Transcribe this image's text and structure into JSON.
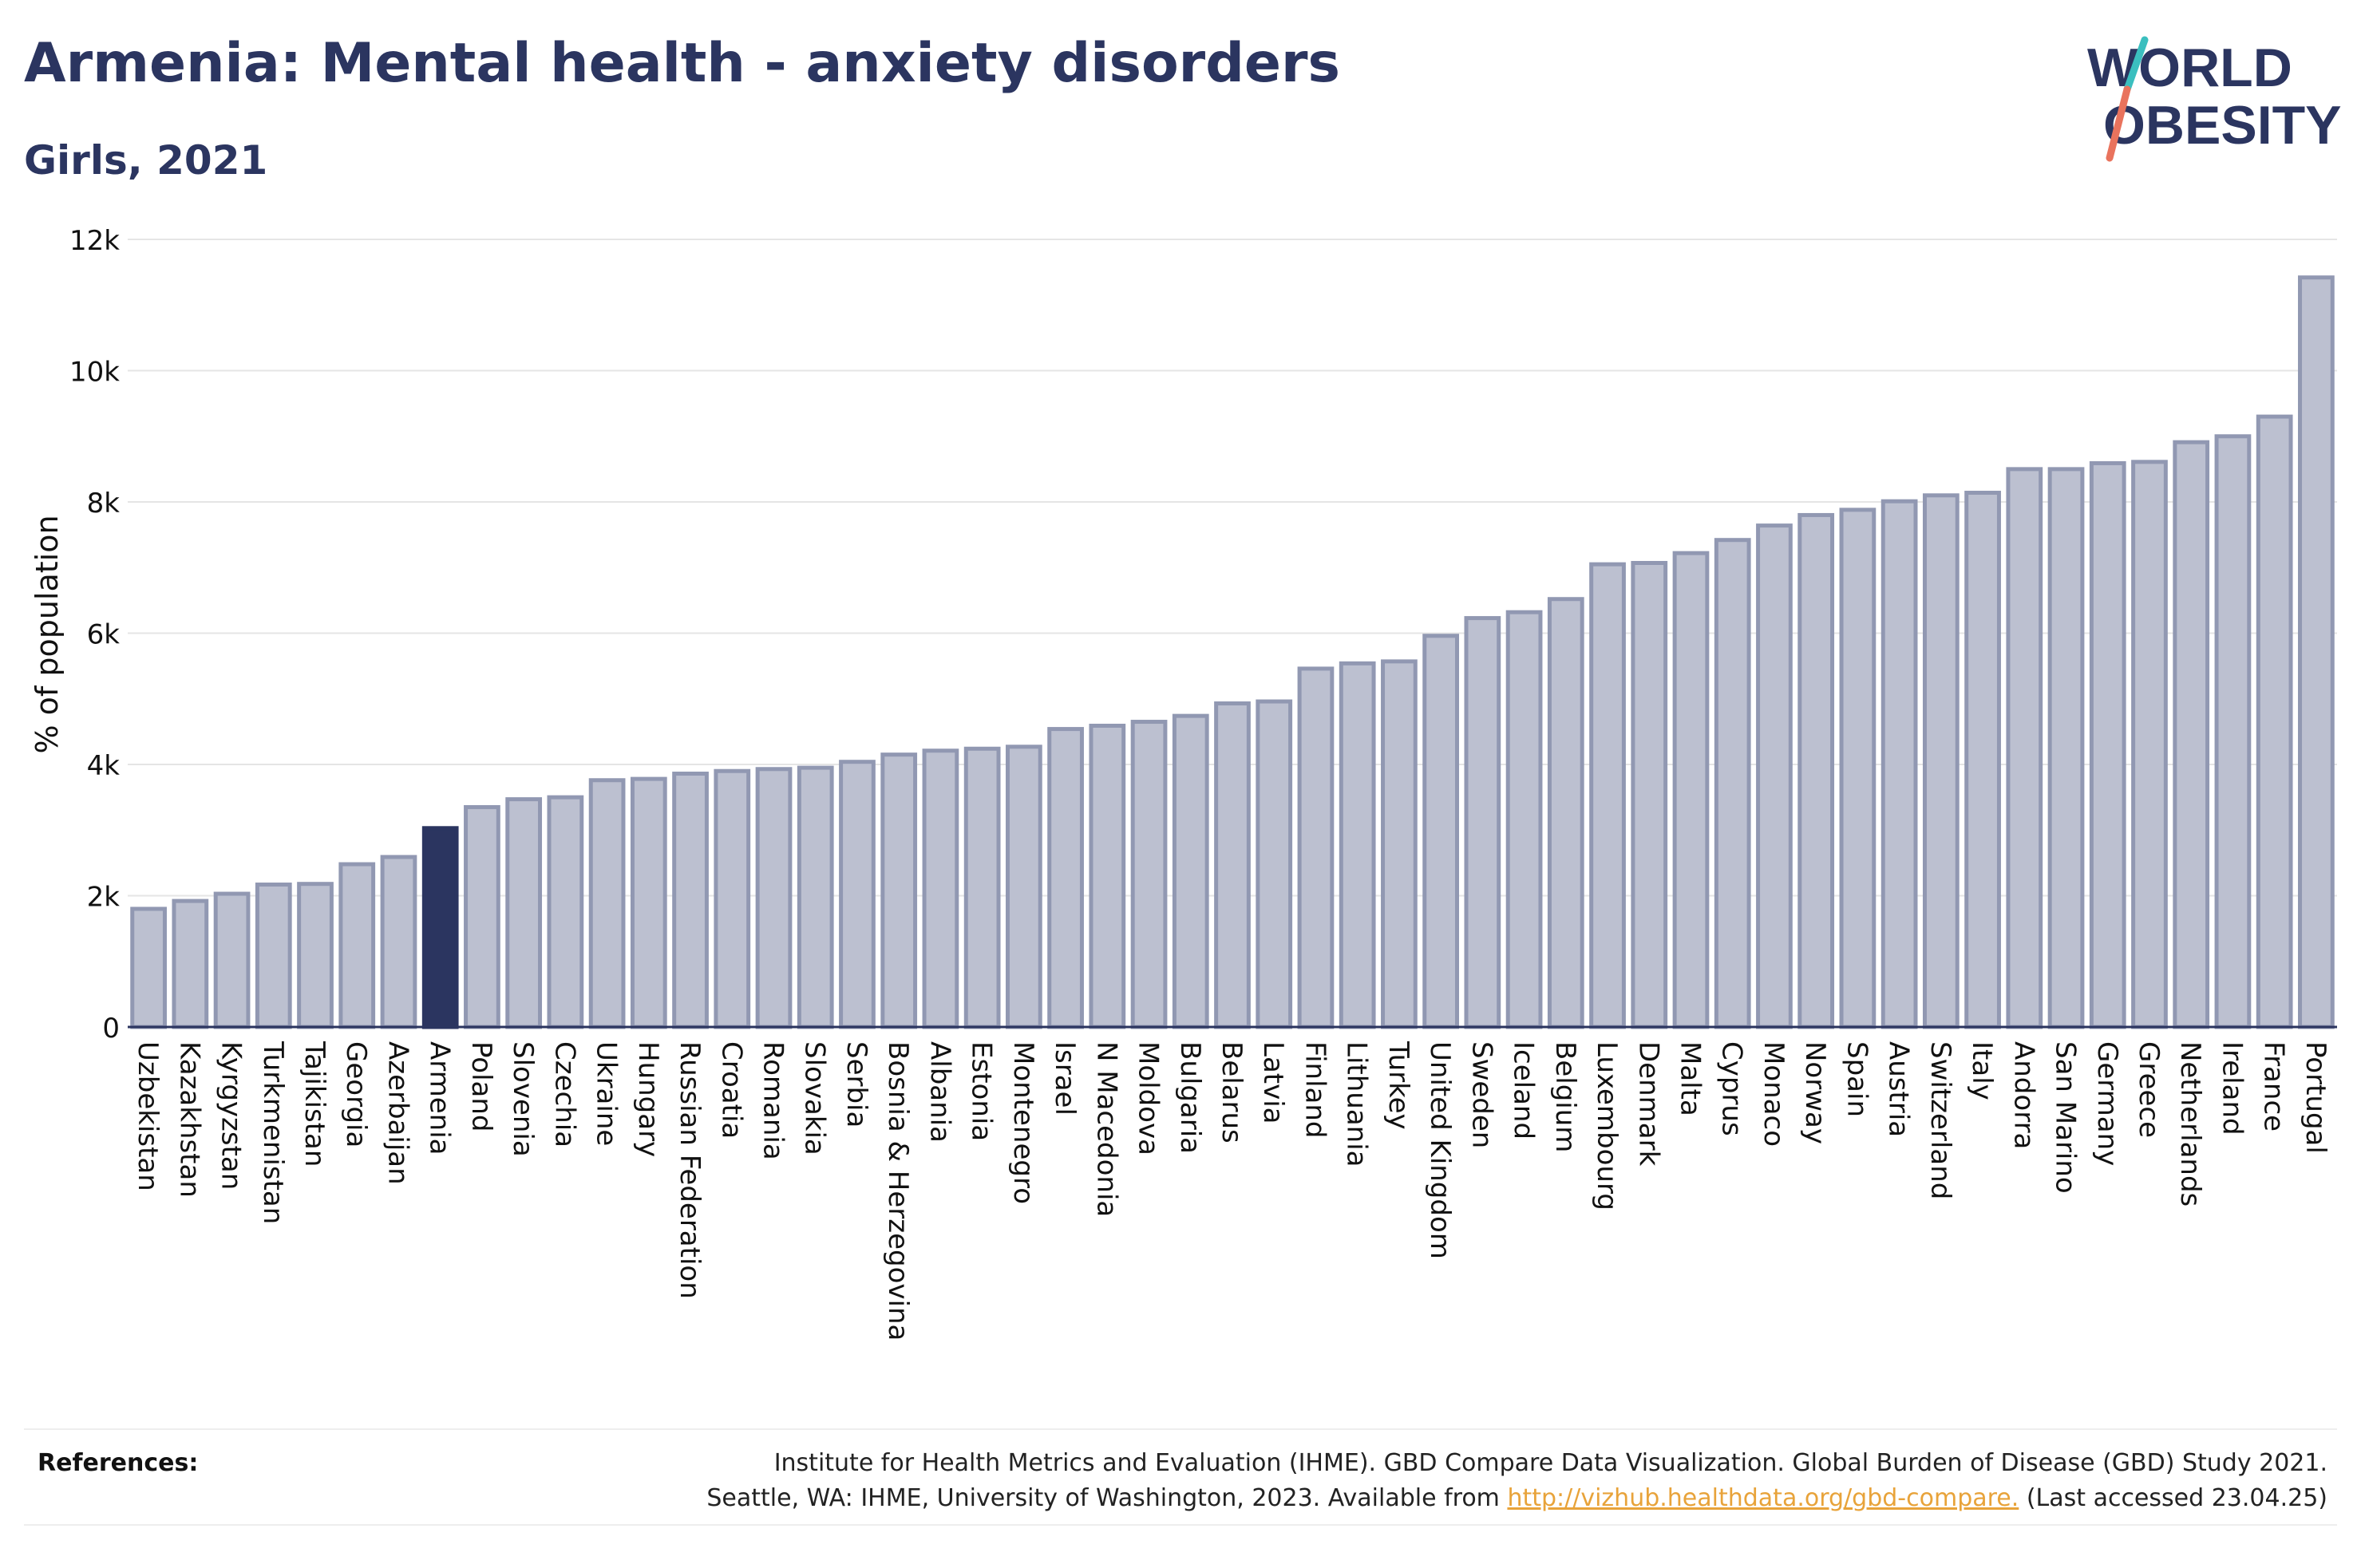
{
  "title": "Armenia: Mental health - anxiety disorders",
  "subtitle": "Girls, 2021",
  "logo": {
    "line1": "WORLD",
    "line2": "OBESITY"
  },
  "colors": {
    "title": "#2b3560",
    "bar_default": "#bcc0d0",
    "bar_default_stroke": "#9198b2",
    "bar_highlight": "#2b3560",
    "grid": "#e5e5e5",
    "link": "#e8a33a",
    "logo_teal": "#3bbfbf",
    "logo_coral": "#e9735d"
  },
  "references": {
    "label": "References:",
    "line1": "Institute for Health Metrics and Evaluation (IHME). GBD Compare Data Visualization. Global Burden of Disease (GBD) Study 2021.",
    "line2_before": "Seattle, WA: IHME, University of Washington, 2023. Available from ",
    "line2_link": "http://vizhub.healthdata.org/gbd-compare.",
    "line2_after": " (Last accessed 23.04.25)"
  },
  "chart_data": {
    "type": "bar",
    "ylabel": "% of population",
    "xlabel": "",
    "ylim": [
      0,
      12000
    ],
    "yticks": [
      {
        "value": 0,
        "label": "0"
      },
      {
        "value": 2000,
        "label": "2k"
      },
      {
        "value": 4000,
        "label": "4k"
      },
      {
        "value": 6000,
        "label": "6k"
      },
      {
        "value": 8000,
        "label": "8k"
      },
      {
        "value": 10000,
        "label": "10k"
      },
      {
        "value": 12000,
        "label": "12k"
      }
    ],
    "grid": true,
    "highlight": "Armenia",
    "categories": [
      "Uzbekistan",
      "Kazakhstan",
      "Kyrgyzstan",
      "Turkmenistan",
      "Tajikistan",
      "Georgia",
      "Azerbaijan",
      "Armenia",
      "Poland",
      "Slovenia",
      "Czechia",
      "Ukraine",
      "Hungary",
      "Russian Federation",
      "Croatia",
      "Romania",
      "Slovakia",
      "Serbia",
      "Bosnia & Herzegovina",
      "Albania",
      "Estonia",
      "Montenegro",
      "Israel",
      "N Macedonia",
      "Moldova",
      "Bulgaria",
      "Belarus",
      "Latvia",
      "Finland",
      "Lithuania",
      "Turkey",
      "United Kingdom",
      "Sweden",
      "Iceland",
      "Belgium",
      "Luxembourg",
      "Denmark",
      "Malta",
      "Cyprus",
      "Monaco",
      "Norway",
      "Spain",
      "Austria",
      "Switzerland",
      "Italy",
      "Andorra",
      "San Marino",
      "Germany",
      "Greece",
      "Netherlands",
      "Ireland",
      "France",
      "Portugal"
    ],
    "values": [
      1800,
      1920,
      2030,
      2170,
      2180,
      2480,
      2590,
      3030,
      3350,
      3470,
      3500,
      3760,
      3780,
      3860,
      3900,
      3930,
      3950,
      4040,
      4150,
      4210,
      4240,
      4270,
      4540,
      4590,
      4650,
      4740,
      4930,
      4960,
      5460,
      5540,
      5570,
      5960,
      6230,
      6320,
      6520,
      7050,
      7070,
      7220,
      7420,
      7640,
      7800,
      7880,
      8010,
      8100,
      8140,
      8500,
      8500,
      8590,
      8610,
      8910,
      9000,
      9300,
      11420
    ]
  }
}
